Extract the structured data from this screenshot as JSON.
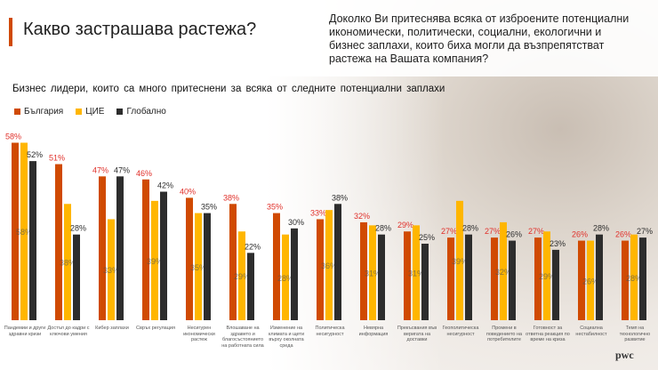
{
  "header": {
    "title": "Какво застрашава растежа?",
    "question": "Доколко Ви притеснява всяка от изброените потенциални икономически, политически, социални, екологични и бизнес заплахи, които биха могли да възпрепятстват растежа на Вашата компания?"
  },
  "logo": "pwc",
  "chart_data": {
    "type": "bar",
    "title": "Бизнес лидери,  които са много притеснени  за всяка от следните  потенциални  заплахи",
    "categories": [
      "Пандемии и други здравни кризи",
      "Достъп до кадри с ключови умения",
      "Кибер заплахи",
      "Свръх регулация",
      "Несигурен икономически растеж",
      "Влошаване на здравето и благосъстоянието на работната сила",
      "Изменение на климата и щети върху околната среда",
      "Политическа несигурност",
      "Невярна информация",
      "Прекъсвания във веригата на доставки",
      "Геополитическа несигурност",
      "Промени в поведението на потребителите",
      "Готовност за ответна реакция по време на криза",
      "Социална нестабилност",
      "Темп на технологично развитие"
    ],
    "series": [
      {
        "name": "България",
        "color": "#d04a02",
        "label_color": "#e0302a",
        "values": [
          58,
          51,
          47,
          46,
          40,
          38,
          35,
          33,
          32,
          29,
          27,
          27,
          27,
          26,
          26
        ]
      },
      {
        "name": "ЦИЕ",
        "color": "#ffb600",
        "label_color": "#555555",
        "values": [
          58,
          38,
          33,
          39,
          35,
          29,
          28,
          36,
          31,
          31,
          39,
          32,
          29,
          26,
          28
        ]
      },
      {
        "name": "Глобално",
        "color": "#2d2d2d",
        "label_color": "#2d2d2d",
        "values": [
          52,
          28,
          47,
          42,
          35,
          22,
          30,
          38,
          28,
          25,
          28,
          26,
          23,
          28,
          27
        ]
      }
    ],
    "ylim": [
      0,
      60
    ],
    "legend": "top-left",
    "grid": false
  }
}
